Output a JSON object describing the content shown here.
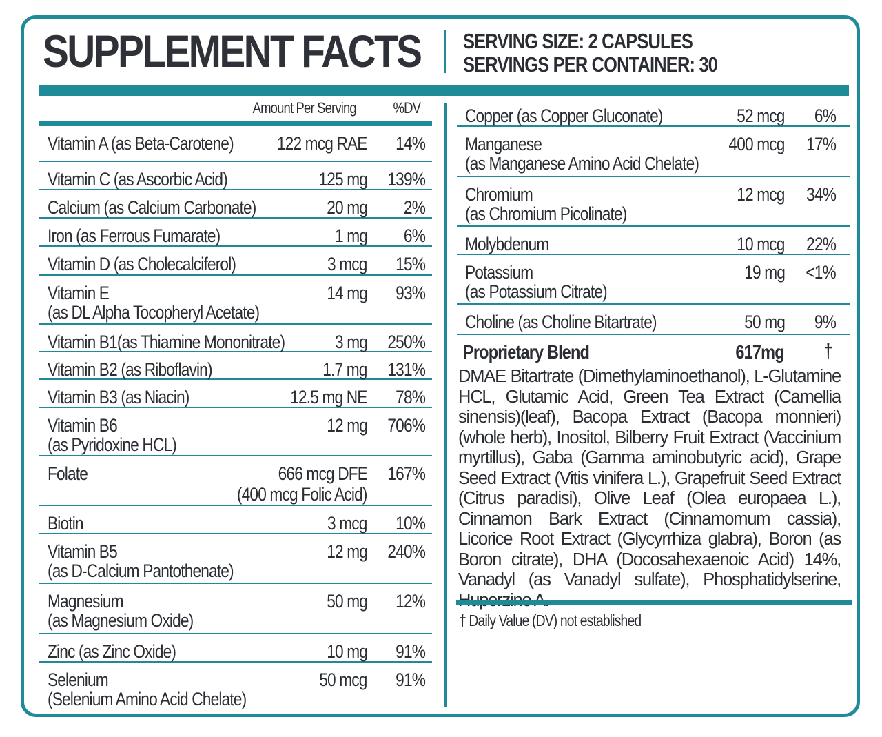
{
  "header": {
    "title": "SUPPLEMENT FACTS",
    "serving_size": "SERVING SIZE: 2 CAPSULES",
    "servings_per_container": "SERVINGS PER CONTAINER: 30"
  },
  "columns": {
    "amount": "Amount Per Serving",
    "dv": "%DV"
  },
  "colors": {
    "accent": "#1f8a98",
    "text": "#2a2e33"
  },
  "left_rows": [
    {
      "name": [
        "Vitamin A (as Beta-Carotene)"
      ],
      "amount": [
        "122 mcg RAE"
      ],
      "dv": "14%"
    },
    {
      "name": [
        "Vitamin C (as Ascorbic Acid)"
      ],
      "amount": [
        "125 mg"
      ],
      "dv": "139%"
    },
    {
      "name": [
        "Calcium (as Calcium Carbonate)"
      ],
      "amount": [
        "20 mg"
      ],
      "dv": "2%"
    },
    {
      "name": [
        "Iron (as Ferrous Fumarate)"
      ],
      "amount": [
        "1 mg"
      ],
      "dv": "6%"
    },
    {
      "name": [
        "Vitamin D (as Cholecalciferol)"
      ],
      "amount": [
        "3 mcg"
      ],
      "dv": "15%"
    },
    {
      "name": [
        "Vitamin E",
        "(as DL Alpha Tocopheryl Acetate)"
      ],
      "amount": [
        "14 mg"
      ],
      "dv": "93%"
    },
    {
      "name": [
        "Vitamin B1(as Thiamine Mononitrate)"
      ],
      "amount": [
        "3 mg"
      ],
      "dv": "250%"
    },
    {
      "name": [
        "Vitamin B2 (as Riboflavin)"
      ],
      "amount": [
        "1.7 mg"
      ],
      "dv": "131%"
    },
    {
      "name": [
        "Vitamin B3 (as Niacin)"
      ],
      "amount": [
        "12.5 mg NE"
      ],
      "dv": "78%"
    },
    {
      "name": [
        "Vitamin B6",
        "(as Pyridoxine HCL)"
      ],
      "amount": [
        "12 mg"
      ],
      "dv": "706%"
    },
    {
      "name": [
        "Folate"
      ],
      "amount": [
        "666 mcg DFE",
        "(400 mcg Folic Acid)"
      ],
      "dv": "167%"
    },
    {
      "name": [
        "Biotin"
      ],
      "amount": [
        "3 mcg"
      ],
      "dv": "10%"
    },
    {
      "name": [
        "Vitamin B5",
        "(as D-Calcium Pantothenate)"
      ],
      "amount": [
        "12 mg"
      ],
      "dv": "240%"
    },
    {
      "name": [
        "Magnesium",
        "(as Magnesium Oxide)"
      ],
      "amount": [
        "50 mg"
      ],
      "dv": "12%"
    },
    {
      "name": [
        "Zinc (as Zinc Oxide)"
      ],
      "amount": [
        "10 mg"
      ],
      "dv": "91%"
    },
    {
      "name": [
        "Selenium",
        "(Selenium Amino Acid Chelate)"
      ],
      "amount": [
        "50 mcg"
      ],
      "dv": "91%"
    }
  ],
  "right_rows": [
    {
      "name": [
        "Copper (as Copper Gluconate)"
      ],
      "amount": [
        "52 mcg"
      ],
      "dv": "6%"
    },
    {
      "name": [
        "Manganese",
        "(as Manganese Amino Acid Chelate)"
      ],
      "amount": [
        "400 mcg"
      ],
      "dv": "17%"
    },
    {
      "name": [
        "Chromium",
        "(as Chromium Picolinate)"
      ],
      "amount": [
        "12 mcg"
      ],
      "dv": "34%"
    },
    {
      "name": [
        "Molybdenum"
      ],
      "amount": [
        "10 mcg"
      ],
      "dv": "22%"
    },
    {
      "name": [
        "Potassium",
        "(as Potassium Citrate)"
      ],
      "amount": [
        "19 mg"
      ],
      "dv": "<1%"
    },
    {
      "name": [
        "Choline (as Choline Bitartrate)"
      ],
      "amount": [
        "50 mg"
      ],
      "dv": "9%"
    }
  ],
  "blend": {
    "name": "Proprietary Blend",
    "amount": "617mg",
    "dv": "†",
    "ingredients": "DMAE Bitartrate (Dimethylaminoethanol), L-Glutamine HCL, Glutamic Acid, Green Tea Extract (Camellia sinensis)(leaf), Bacopa Extract (Bacopa monnieri)(whole herb), Inositol, Bilberry Fruit Extract (Vaccinium myrtillus), Gaba (Gamma aminobutyric acid), Grape Seed Extract (Vitis vinifera L.), Grapefruit Seed Extract (Citrus paradisi), Olive Leaf (Olea europaea L.), Cinnamon Bark Extract (Cinnamomum cassia), Licorice Root Extract (Glycyrrhiza glabra), Boron (as Boron citrate), DHA (Docosahexaenoic Acid) 14%, Vanadyl (as Vanadyl sulfate), Phosphatidylserine, Huperzine A."
  },
  "footnote": "† Daily Value (DV) not established"
}
